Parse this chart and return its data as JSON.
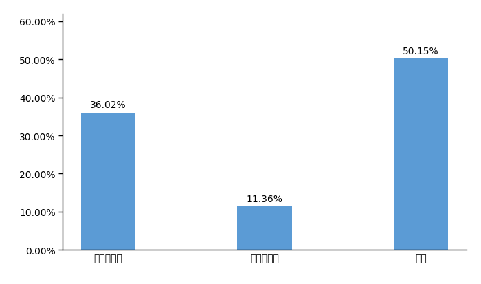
{
  "categories": [
    "有单边货源",
    "有双边货源",
    "没有"
  ],
  "values": [
    0.3602,
    0.1136,
    0.5015
  ],
  "labels": [
    "36.02%",
    "11.36%",
    "50.15%"
  ],
  "bar_color": "#5B9BD5",
  "ylim": [
    0,
    0.62
  ],
  "yticks": [
    0.0,
    0.1,
    0.2,
    0.3,
    0.4,
    0.5,
    0.6
  ],
  "ytick_labels": [
    "0.00%",
    "10.00%",
    "20.00%",
    "30.00%",
    "40.00%",
    "50.00%",
    "60.00%"
  ],
  "background_color": "#FFFFFF",
  "bar_width": 0.35,
  "label_fontsize": 10,
  "tick_fontsize": 10,
  "figure_width": 7.0,
  "figure_height": 4.14,
  "dpi": 100
}
